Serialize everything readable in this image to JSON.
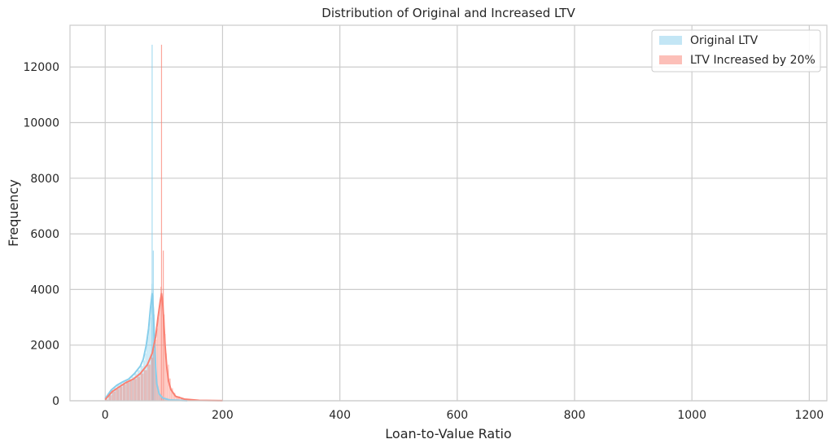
{
  "chart_data": {
    "type": "histogram",
    "title": "Distribution of Original and Increased LTV",
    "xlabel": "Loan-to-Value Ratio",
    "ylabel": "Frequency",
    "xlim": [
      -60,
      1230
    ],
    "ylim": [
      0,
      13500
    ],
    "xticks": [
      0,
      200,
      400,
      600,
      800,
      1000,
      1200
    ],
    "yticks": [
      0,
      2000,
      4000,
      6000,
      8000,
      10000,
      12000
    ],
    "grid": true,
    "legend_position": "top-right",
    "series": [
      {
        "name": "Original LTV",
        "color": "#87ceeb",
        "bins": [
          [
            0,
            80
          ],
          [
            5,
            250
          ],
          [
            10,
            380
          ],
          [
            15,
            460
          ],
          [
            20,
            560
          ],
          [
            25,
            620
          ],
          [
            30,
            680
          ],
          [
            35,
            720
          ],
          [
            40,
            780
          ],
          [
            45,
            860
          ],
          [
            50,
            980
          ],
          [
            55,
            1100
          ],
          [
            60,
            1250
          ],
          [
            65,
            1450
          ],
          [
            68,
            1700
          ],
          [
            70,
            2000
          ],
          [
            72,
            2300
          ],
          [
            74,
            2600
          ],
          [
            76,
            3000
          ],
          [
            78,
            3400
          ],
          [
            79,
            4200
          ],
          [
            80,
            12800
          ],
          [
            81,
            3800
          ],
          [
            82,
            5400
          ],
          [
            83,
            3100
          ],
          [
            84,
            2200
          ],
          [
            85,
            1300
          ],
          [
            87,
            700
          ],
          [
            89,
            400
          ],
          [
            91,
            250
          ],
          [
            95,
            120
          ],
          [
            100,
            60
          ],
          [
            110,
            25
          ],
          [
            130,
            8
          ]
        ],
        "kde": [
          [
            0,
            80
          ],
          [
            10,
            380
          ],
          [
            20,
            560
          ],
          [
            30,
            680
          ],
          [
            40,
            780
          ],
          [
            50,
            980
          ],
          [
            60,
            1250
          ],
          [
            65,
            1500
          ],
          [
            70,
            2000
          ],
          [
            74,
            2600
          ],
          [
            77,
            3300
          ],
          [
            80,
            3850
          ],
          [
            82,
            3300
          ],
          [
            84,
            2200
          ],
          [
            86,
            1200
          ],
          [
            88,
            600
          ],
          [
            92,
            250
          ],
          [
            98,
            100
          ],
          [
            110,
            30
          ],
          [
            140,
            5
          ]
        ]
      },
      {
        "name": "LTV Increased by 20%",
        "color": "#fa8072",
        "bins": [
          [
            0,
            40
          ],
          [
            6,
            200
          ],
          [
            12,
            330
          ],
          [
            18,
            420
          ],
          [
            24,
            500
          ],
          [
            30,
            580
          ],
          [
            36,
            660
          ],
          [
            42,
            720
          ],
          [
            48,
            780
          ],
          [
            54,
            860
          ],
          [
            60,
            980
          ],
          [
            66,
            1100
          ],
          [
            72,
            1300
          ],
          [
            78,
            1550
          ],
          [
            82,
            1850
          ],
          [
            85,
            2200
          ],
          [
            88,
            2600
          ],
          [
            90,
            3000
          ],
          [
            92,
            3500
          ],
          [
            94,
            4100
          ],
          [
            96,
            12800
          ],
          [
            97,
            3700
          ],
          [
            99,
            5400
          ],
          [
            100,
            3100
          ],
          [
            101,
            2400
          ],
          [
            103,
            1700
          ],
          [
            105,
            1100
          ],
          [
            107,
            1300
          ],
          [
            109,
            800
          ],
          [
            112,
            450
          ],
          [
            116,
            280
          ],
          [
            120,
            160
          ],
          [
            128,
            80
          ],
          [
            140,
            35
          ],
          [
            160,
            15
          ],
          [
            180,
            5
          ]
        ],
        "kde": [
          [
            0,
            40
          ],
          [
            12,
            330
          ],
          [
            24,
            500
          ],
          [
            36,
            660
          ],
          [
            48,
            780
          ],
          [
            60,
            980
          ],
          [
            72,
            1300
          ],
          [
            80,
            1700
          ],
          [
            86,
            2300
          ],
          [
            90,
            3000
          ],
          [
            94,
            3600
          ],
          [
            96,
            3850
          ],
          [
            98,
            3500
          ],
          [
            100,
            2800
          ],
          [
            102,
            2000
          ],
          [
            105,
            1200
          ],
          [
            108,
            700
          ],
          [
            112,
            400
          ],
          [
            120,
            160
          ],
          [
            135,
            60
          ],
          [
            160,
            15
          ],
          [
            200,
            3
          ]
        ]
      }
    ]
  }
}
